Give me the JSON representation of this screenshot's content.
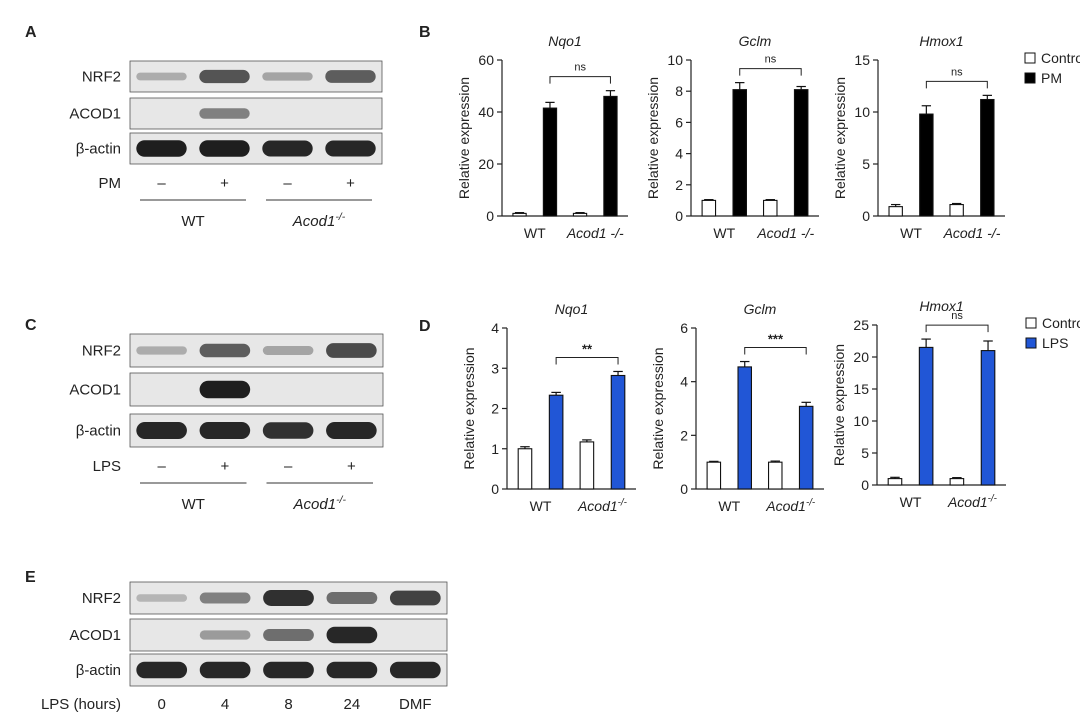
{
  "panels": {
    "A": {
      "letter": "A",
      "rows": [
        "NRF2",
        "ACOD1",
        "β-actin"
      ],
      "treatment_label": "PM",
      "lanes": [
        "–",
        "+",
        "–",
        "+"
      ],
      "groups": [
        "WT",
        "Acod1-/-"
      ],
      "band_intensity": {
        "NRF2": [
          0.15,
          0.65,
          0.2,
          0.6
        ],
        "ACOD1": [
          0.0,
          0.4,
          0.0,
          0.0
        ],
        "β-actin": [
          0.95,
          0.95,
          0.9,
          0.9
        ]
      }
    },
    "C": {
      "letter": "C",
      "rows": [
        "NRF2",
        "ACOD1",
        "β-actin"
      ],
      "treatment_label": "LPS",
      "lanes": [
        "–",
        "+",
        "–",
        "+"
      ],
      "groups": [
        "WT",
        "Acod1-/-"
      ],
      "band_intensity": {
        "NRF2": [
          0.15,
          0.6,
          0.2,
          0.7
        ],
        "ACOD1": [
          0.0,
          0.95,
          0.0,
          0.0
        ],
        "β-actin": [
          0.9,
          0.9,
          0.85,
          0.9
        ]
      }
    },
    "E": {
      "letter": "E",
      "rows": [
        "NRF2",
        "ACOD1",
        "β-actin"
      ],
      "treatment_label": "LPS (hours)",
      "lanes": [
        "0",
        "4",
        "8",
        "24",
        "DMF"
      ],
      "band_intensity": {
        "NRF2": [
          0.1,
          0.4,
          0.85,
          0.5,
          0.75
        ],
        "ACOD1": [
          0.0,
          0.25,
          0.5,
          0.9,
          0.0
        ],
        "β-actin": [
          0.9,
          0.9,
          0.9,
          0.9,
          0.9
        ]
      }
    },
    "B": {
      "letter": "B"
    },
    "D": {
      "letter": "D"
    }
  },
  "chart_data": [
    {
      "type": "bar",
      "panel": "B",
      "title": "Nqo1",
      "ylabel": "Relative expression",
      "categories": [
        "WT",
        "Acod1 -/-"
      ],
      "ylim": [
        0,
        60
      ],
      "yticks": [
        0,
        20,
        40,
        60
      ],
      "series": [
        {
          "name": "Control",
          "values": [
            1,
            1
          ],
          "errors": [
            0.3,
            0.3
          ]
        },
        {
          "name": "PM",
          "values": [
            41.5,
            46
          ],
          "errors": [
            2.2,
            2.2
          ]
        }
      ],
      "significance": "ns"
    },
    {
      "type": "bar",
      "panel": "B",
      "title": "Gclm",
      "ylabel": "Relative expression",
      "categories": [
        "WT",
        "Acod1 -/-"
      ],
      "ylim": [
        0,
        10
      ],
      "yticks": [
        0,
        2,
        4,
        6,
        8,
        10
      ],
      "series": [
        {
          "name": "Control",
          "values": [
            1,
            1
          ],
          "errors": [
            0.05,
            0.05
          ]
        },
        {
          "name": "PM",
          "values": [
            8.1,
            8.1
          ],
          "errors": [
            0.45,
            0.2
          ]
        }
      ],
      "significance": "ns"
    },
    {
      "type": "bar",
      "panel": "B",
      "title": "Hmox1",
      "ylabel": "Relative expression",
      "categories": [
        "WT",
        "Acod1 -/-"
      ],
      "ylim": [
        0,
        15
      ],
      "yticks": [
        0,
        5,
        10,
        15
      ],
      "series": [
        {
          "name": "Control",
          "values": [
            0.9,
            1.1
          ],
          "errors": [
            0.2,
            0.1
          ]
        },
        {
          "name": "PM",
          "values": [
            9.8,
            11.2
          ],
          "errors": [
            0.8,
            0.4
          ]
        }
      ],
      "significance": "ns",
      "legend": {
        "items": [
          "Control",
          "PM"
        ],
        "position": "top-right"
      }
    },
    {
      "type": "bar",
      "panel": "D",
      "title": "Nqo1",
      "ylabel": "Relative expression",
      "categories": [
        "WT",
        "Acod1-/-"
      ],
      "ylim": [
        0,
        4
      ],
      "yticks": [
        0,
        1,
        2,
        3,
        4
      ],
      "series": [
        {
          "name": "Control",
          "values": [
            1.0,
            1.17
          ],
          "errors": [
            0.05,
            0.05
          ]
        },
        {
          "name": "LPS",
          "values": [
            2.33,
            2.82
          ],
          "errors": [
            0.07,
            0.1
          ]
        }
      ],
      "significance": "**"
    },
    {
      "type": "bar",
      "panel": "D",
      "title": "Gclm",
      "ylabel": "Relative expression",
      "categories": [
        "WT",
        "Acod1-/-"
      ],
      "ylim": [
        0,
        6
      ],
      "yticks": [
        0,
        2,
        4,
        6
      ],
      "series": [
        {
          "name": "Control",
          "values": [
            1.0,
            1.0
          ],
          "errors": [
            0.03,
            0.04
          ]
        },
        {
          "name": "LPS",
          "values": [
            4.55,
            3.08
          ],
          "errors": [
            0.2,
            0.15
          ]
        }
      ],
      "significance": "***"
    },
    {
      "type": "bar",
      "panel": "D",
      "title": "Hmox1",
      "ylabel": "Relative expression",
      "categories": [
        "WT",
        "Acod1-/-"
      ],
      "ylim": [
        0,
        25
      ],
      "yticks": [
        0,
        5,
        10,
        15,
        20,
        25
      ],
      "series": [
        {
          "name": "Control",
          "values": [
            1.0,
            1.0
          ],
          "errors": [
            0.2,
            0.15
          ]
        },
        {
          "name": "LPS",
          "values": [
            21.5,
            21.0
          ],
          "errors": [
            1.3,
            1.5
          ]
        }
      ],
      "significance": "ns",
      "legend": {
        "items": [
          "Control",
          "LPS"
        ],
        "position": "top-right"
      }
    }
  ],
  "colors": {
    "control_fill": "#ffffff",
    "pm_fill": "#000000",
    "lps_fill": "#2156d6",
    "outline": "#111111",
    "blot_bg": "#e7e7e7",
    "band": "#151515"
  }
}
